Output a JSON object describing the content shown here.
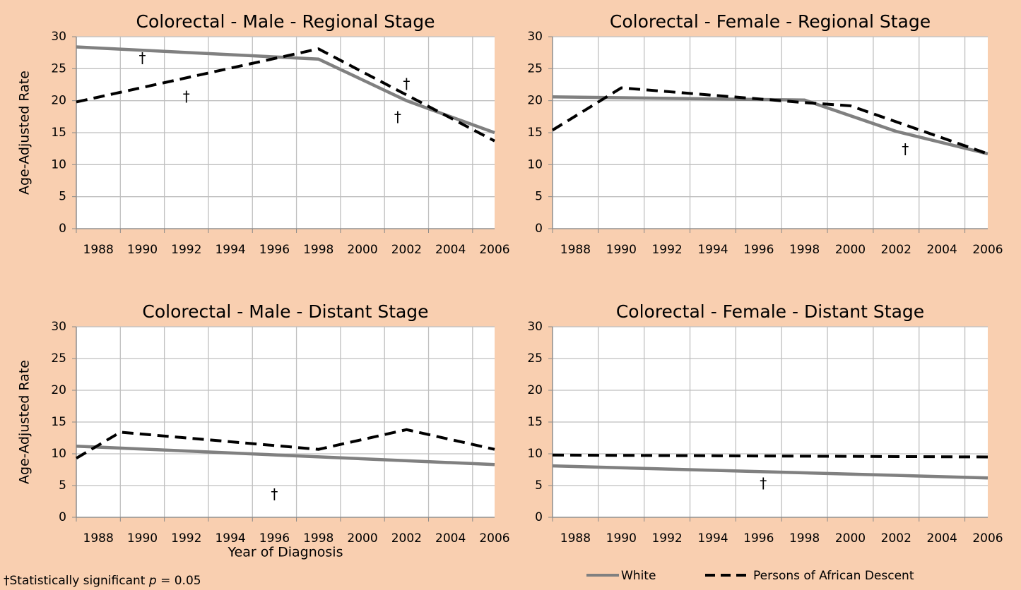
{
  "chart_data": [
    {
      "type": "line",
      "title": "Colorectal - Male - Regional Stage",
      "y_label": "Age-Adjusted Rate",
      "xlim": [
        1988,
        2007
      ],
      "xticks": [
        1988,
        1990,
        1992,
        1994,
        1996,
        1998,
        2000,
        2002,
        2004,
        2006
      ],
      "ylim": [
        0,
        30
      ],
      "yticks": [
        0,
        5,
        10,
        15,
        20,
        25,
        30
      ],
      "grid": true,
      "series": [
        {
          "name": "White",
          "color": "#808080",
          "dashed": false,
          "x": [
            1988,
            1999,
            2003,
            2007
          ],
          "values": [
            28.4,
            26.5,
            20.0,
            15.0
          ]
        },
        {
          "name": "Persons of African Descent",
          "color": "#000000",
          "dashed": true,
          "x": [
            1988,
            1999,
            2007
          ],
          "values": [
            19.8,
            28.1,
            13.7
          ]
        }
      ],
      "annotations": [
        {
          "text": "†",
          "x": 1991,
          "y": 26.5
        },
        {
          "text": "†",
          "x": 1993,
          "y": 20.5
        },
        {
          "text": "†",
          "x": 2003,
          "y": 22.5
        },
        {
          "text": "†",
          "x": 2002.6,
          "y": 17.3
        }
      ]
    },
    {
      "type": "line",
      "title": "Colorectal - Female - Regional Stage",
      "xlim": [
        1988,
        2007
      ],
      "xticks": [
        1988,
        1990,
        1992,
        1994,
        1996,
        1998,
        2000,
        2002,
        2004,
        2006
      ],
      "ylim": [
        0,
        30
      ],
      "yticks": [
        0,
        5,
        10,
        15,
        20,
        25,
        30
      ],
      "grid": true,
      "series": [
        {
          "name": "White",
          "color": "#808080",
          "dashed": false,
          "x": [
            1988,
            1999,
            2003,
            2007
          ],
          "values": [
            20.6,
            20.1,
            15.2,
            11.7
          ]
        },
        {
          "name": "Persons of African Descent",
          "color": "#000000",
          "dashed": true,
          "x": [
            1988,
            1991,
            1999,
            2001,
            2007
          ],
          "values": [
            15.4,
            22.0,
            19.7,
            19.2,
            11.7
          ]
        }
      ],
      "annotations": [
        {
          "text": "†",
          "x": 2003.4,
          "y": 12.3
        }
      ]
    },
    {
      "type": "line",
      "title": "Colorectal - Male - Distant Stage",
      "y_label": "Age-Adjusted Rate",
      "x_label": "Year of Diagnosis",
      "xlim": [
        1988,
        2007
      ],
      "xticks": [
        1988,
        1990,
        1992,
        1994,
        1996,
        1998,
        2000,
        2002,
        2004,
        2006
      ],
      "ylim": [
        0,
        30
      ],
      "yticks": [
        0,
        5,
        10,
        15,
        20,
        25,
        30
      ],
      "grid": true,
      "series": [
        {
          "name": "White",
          "color": "#808080",
          "dashed": false,
          "x": [
            1988,
            2007
          ],
          "values": [
            11.2,
            8.3
          ]
        },
        {
          "name": "Persons of African Descent",
          "color": "#000000",
          "dashed": true,
          "x": [
            1988,
            1990,
            1999,
            2003,
            2007
          ],
          "values": [
            9.3,
            13.4,
            10.7,
            13.8,
            10.7
          ]
        }
      ],
      "annotations": [
        {
          "text": "†",
          "x": 1997,
          "y": 3.5
        }
      ]
    },
    {
      "type": "line",
      "title": "Colorectal - Female - Distant Stage",
      "xlim": [
        1988,
        2007
      ],
      "xticks": [
        1988,
        1990,
        1992,
        1994,
        1996,
        1998,
        2000,
        2002,
        2004,
        2006
      ],
      "ylim": [
        0,
        30
      ],
      "yticks": [
        0,
        5,
        10,
        15,
        20,
        25,
        30
      ],
      "grid": true,
      "series": [
        {
          "name": "White",
          "color": "#808080",
          "dashed": false,
          "x": [
            1988,
            2007
          ],
          "values": [
            8.1,
            6.2
          ]
        },
        {
          "name": "Persons of African Descent",
          "color": "#000000",
          "dashed": true,
          "x": [
            1988,
            2007
          ],
          "values": [
            9.8,
            9.5
          ]
        }
      ],
      "annotations": [
        {
          "text": "†",
          "x": 1997.2,
          "y": 5.2
        }
      ]
    }
  ],
  "footnote": {
    "prefix": "†Statistically significant ",
    "italic": "p",
    "suffix": " = 0.05"
  }
}
